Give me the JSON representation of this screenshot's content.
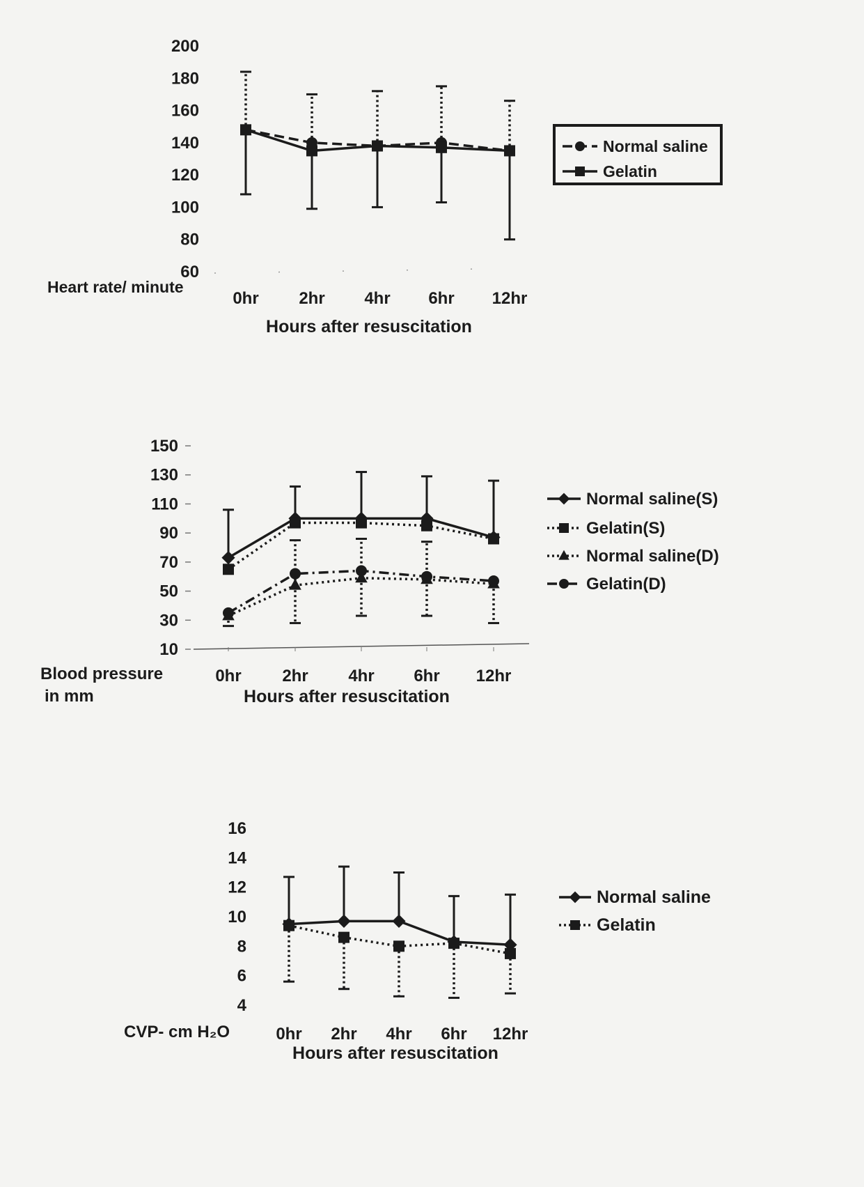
{
  "chart_data": [
    {
      "type": "line",
      "title": "",
      "xlabel": "Hours after resuscitation",
      "ylabel": "Heart rate/ minute",
      "categories": [
        "0hr",
        "2hr",
        "4hr",
        "6hr",
        "12hr"
      ],
      "yticks": [
        60,
        80,
        100,
        120,
        140,
        160,
        180,
        200
      ],
      "ylim": [
        60,
        200
      ],
      "grid": false,
      "legend_position": "right",
      "legend_boxed": true,
      "series": [
        {
          "name": "Normal saline",
          "values": [
            148,
            140,
            138,
            140,
            135
          ],
          "err_upper": [
            184,
            170,
            172,
            175,
            166
          ],
          "err_lower": [
            148,
            140,
            138,
            140,
            135
          ],
          "style": "dashed",
          "marker": "circle"
        },
        {
          "name": "Gelatin",
          "values": [
            148,
            135,
            138,
            137,
            135
          ],
          "err_upper": [
            148,
            135,
            138,
            137,
            135
          ],
          "err_lower": [
            108,
            99,
            100,
            103,
            80
          ],
          "style": "solid",
          "marker": "square"
        }
      ]
    },
    {
      "type": "line",
      "title": "",
      "xlabel": "Hours after resuscitation",
      "ylabel": "Blood pressure in mm",
      "ylabel_lines": [
        "Blood pressure",
        "in mm"
      ],
      "categories": [
        "0hr",
        "2hr",
        "4hr",
        "6hr",
        "12hr"
      ],
      "yticks": [
        10,
        30,
        50,
        70,
        90,
        110,
        130,
        150
      ],
      "ylim": [
        10,
        150
      ],
      "grid": false,
      "legend_position": "right",
      "legend_boxed": false,
      "series": [
        {
          "name": "Normal saline(S)",
          "values": [
            73,
            100,
            100,
            100,
            87
          ],
          "err_upper": [
            106,
            122,
            132,
            129,
            126
          ],
          "err_lower": [
            73,
            100,
            100,
            100,
            87
          ],
          "style": "solid",
          "marker": "diamond"
        },
        {
          "name": "Gelatin(S)",
          "values": [
            65,
            97,
            97,
            95,
            86
          ],
          "err_upper": [
            65,
            97,
            97,
            95,
            86
          ],
          "err_lower": [
            65,
            97,
            97,
            95,
            86
          ],
          "style": "dotted",
          "marker": "square"
        },
        {
          "name": "Normal saline(D)",
          "values": [
            33,
            54,
            59,
            58,
            55
          ],
          "err_upper": [
            33,
            85,
            86,
            84,
            55
          ],
          "err_lower": [
            26,
            28,
            33,
            33,
            28
          ],
          "style": "dotted",
          "marker": "triangle"
        },
        {
          "name": "Gelatin(D)",
          "values": [
            35,
            62,
            64,
            60,
            57
          ],
          "err_upper": [
            35,
            62,
            64,
            60,
            57
          ],
          "err_lower": [
            35,
            62,
            64,
            60,
            57
          ],
          "style": "dashdot",
          "marker": "circle"
        }
      ]
    },
    {
      "type": "line",
      "title": "",
      "xlabel": "Hours after resuscitation",
      "ylabel": "CVP- cm H₂O",
      "categories": [
        "0hr",
        "2hr",
        "4hr",
        "6hr",
        "12hr"
      ],
      "yticks": [
        4,
        6,
        8,
        10,
        12,
        14,
        16
      ],
      "ylim": [
        4,
        16
      ],
      "grid": false,
      "legend_position": "right",
      "legend_boxed": false,
      "series": [
        {
          "name": "Normal saline",
          "values": [
            9.5,
            9.7,
            9.7,
            8.3,
            8.1
          ],
          "err_upper": [
            12.7,
            13.4,
            13.0,
            11.4,
            11.5
          ],
          "err_lower": [
            9.5,
            9.7,
            9.7,
            8.3,
            8.1
          ],
          "style": "solid",
          "marker": "diamond"
        },
        {
          "name": "Gelatin",
          "values": [
            9.4,
            8.6,
            8.0,
            8.2,
            7.5
          ],
          "err_upper": [
            9.4,
            8.6,
            8.0,
            8.2,
            7.5
          ],
          "err_lower": [
            5.6,
            5.1,
            4.6,
            4.5,
            4.8
          ],
          "style": "dotted",
          "marker": "square"
        }
      ]
    }
  ]
}
